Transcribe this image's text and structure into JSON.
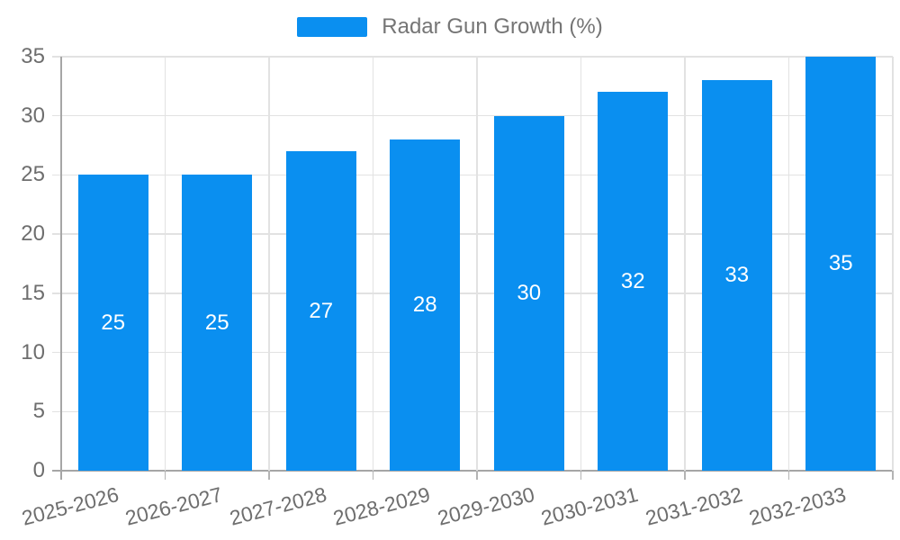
{
  "legend": {
    "label": "Radar Gun Growth (%)"
  },
  "chart_data": {
    "type": "bar",
    "title": "Radar Gun Growth (%)",
    "categories": [
      "2025-2026",
      "2026-2027",
      "2027-2028",
      "2028-2029",
      "2029-2030",
      "2030-2031",
      "2031-2032",
      "2032-2033"
    ],
    "values": [
      25,
      25,
      27,
      28,
      30,
      32,
      33,
      35
    ],
    "series": [
      {
        "name": "Radar Gun Growth (%)",
        "values": [
          25,
          25,
          27,
          28,
          30,
          32,
          33,
          35
        ]
      }
    ],
    "xlabel": "",
    "ylabel": "",
    "ylim": [
      0,
      35
    ],
    "yticks": [
      0,
      5,
      10,
      15,
      20,
      25,
      30,
      35
    ],
    "grid": true,
    "legend_position": "top-center",
    "bar_color": "#0A8FF0",
    "bar_label_color": "#FFFFFF",
    "value_label_placement": "inside-center"
  }
}
